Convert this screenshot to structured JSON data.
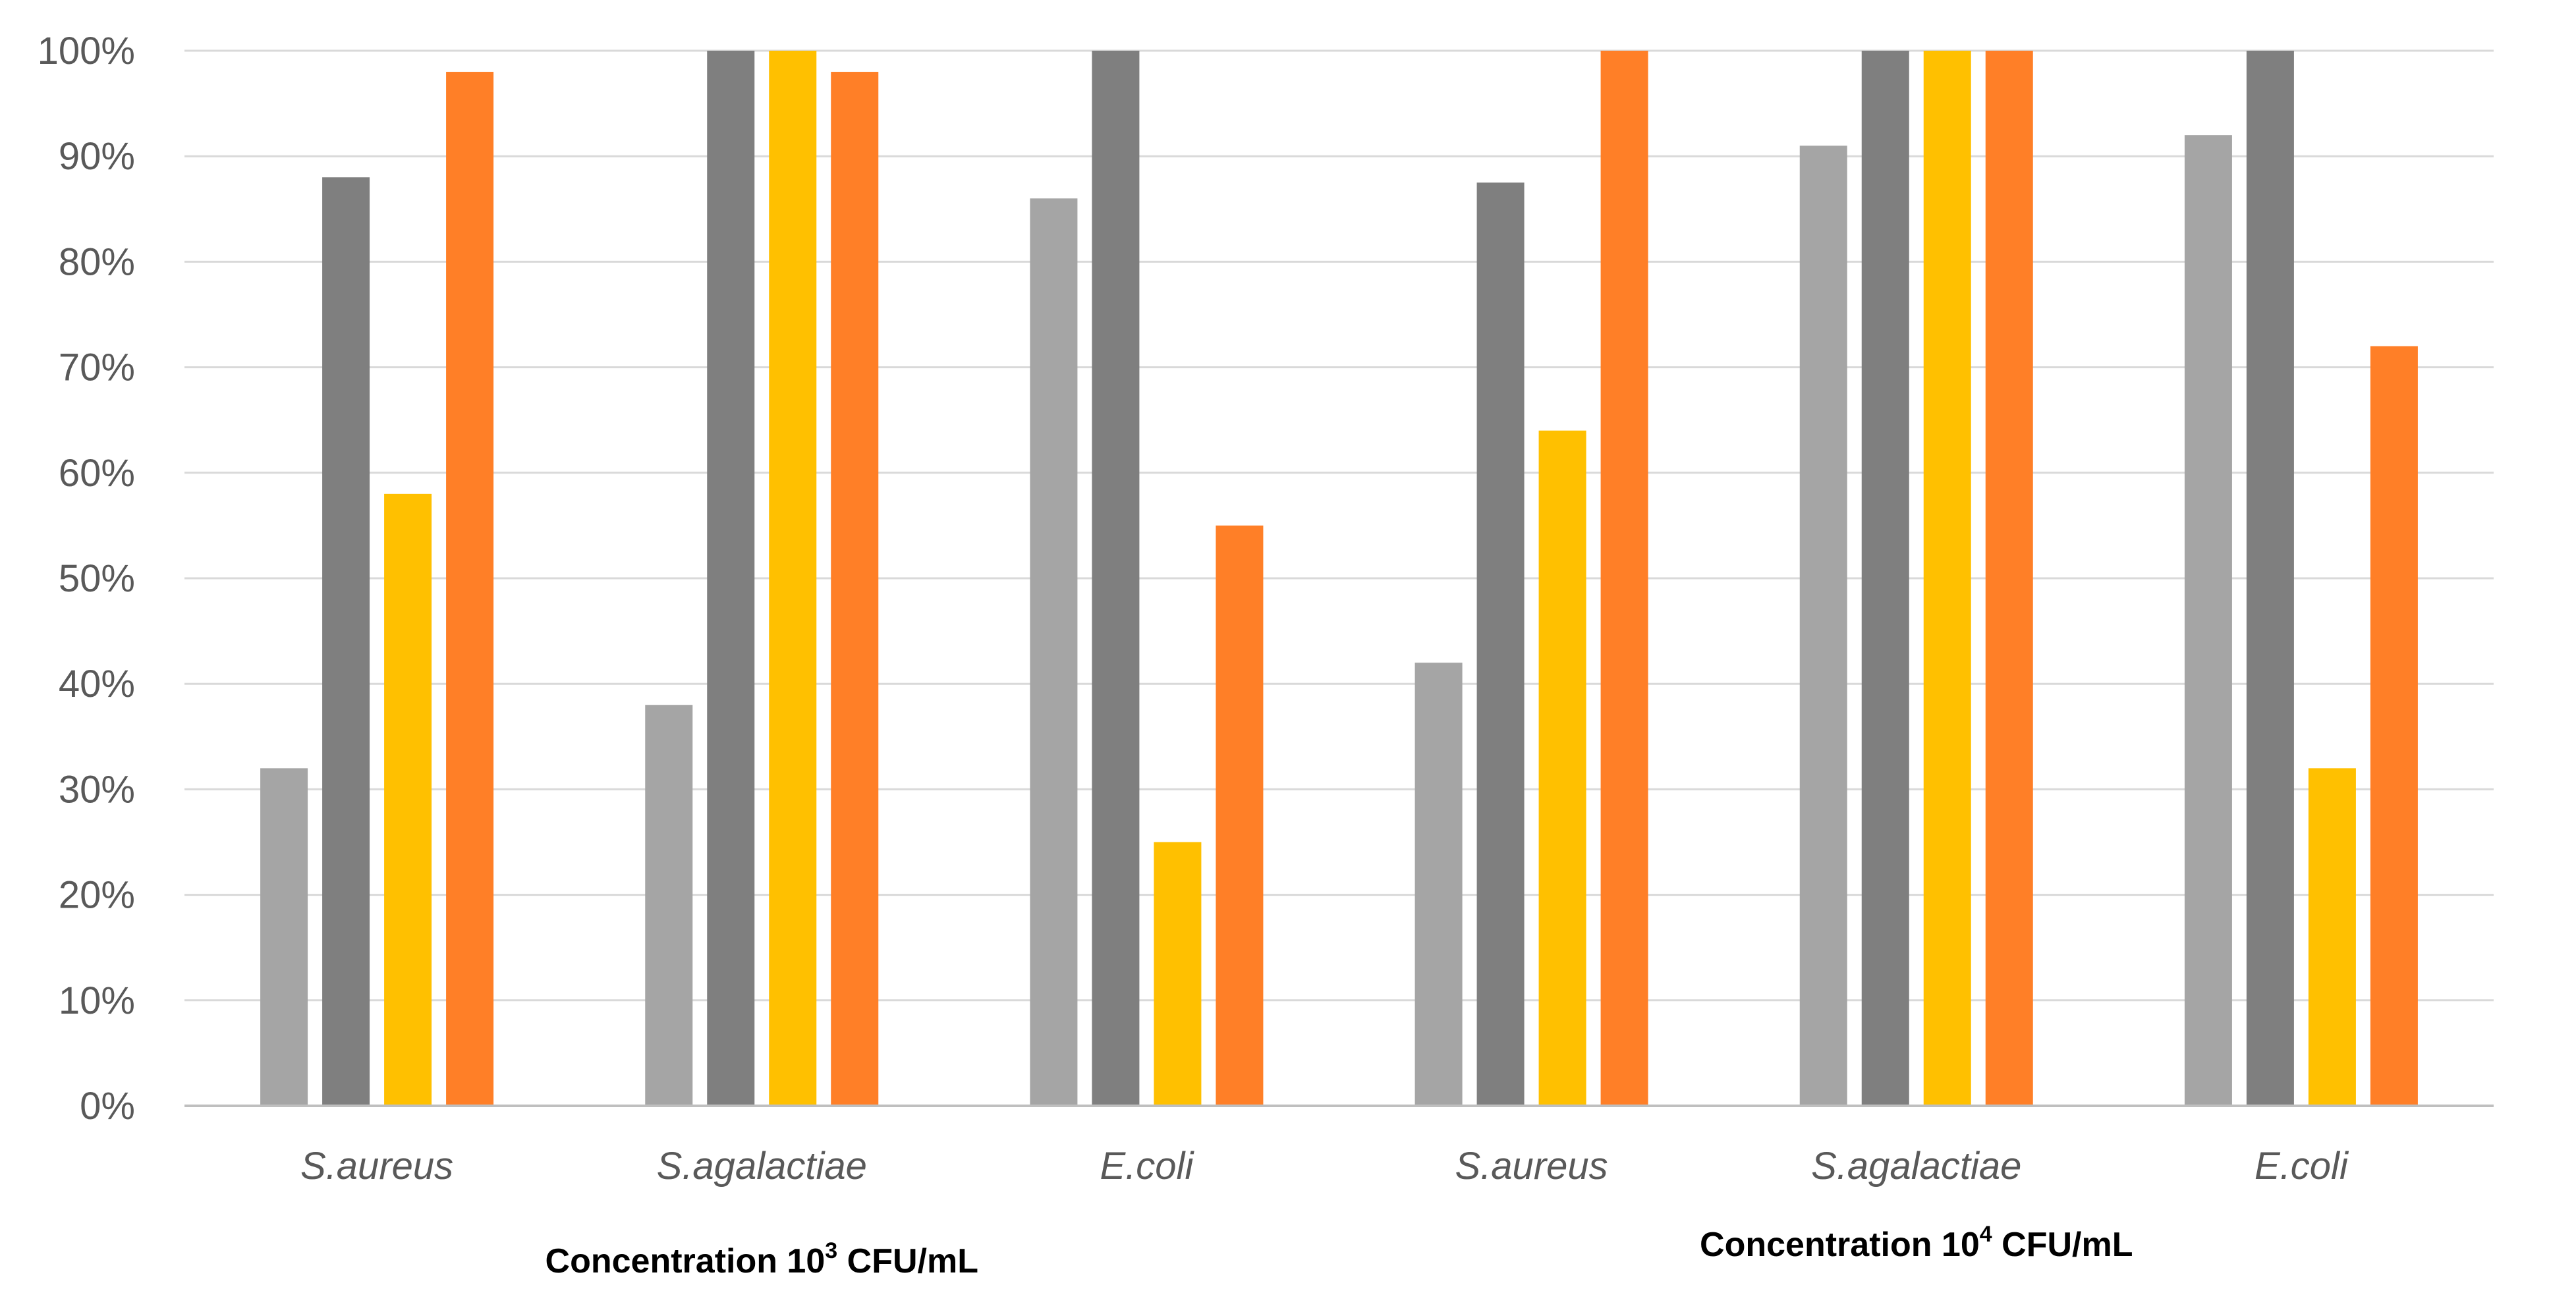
{
  "chart_data": {
    "type": "bar",
    "title": "",
    "xlabel": "",
    "ylabel": "",
    "ylim": [
      0,
      100
    ],
    "y_tick_values": [
      0,
      10,
      20,
      30,
      40,
      50,
      60,
      70,
      80,
      90,
      100
    ],
    "y_tick_labels": [
      "0%",
      "10%",
      "20%",
      "30%",
      "40%",
      "50%",
      "60%",
      "70%",
      "80%",
      "90%",
      "100%"
    ],
    "grid": true,
    "legend": "none",
    "groups": [
      {
        "label_prefix": "Concentration 10",
        "label_sup": "3",
        "label_suffix": " CFU/mL",
        "categories": [
          "S.aureus",
          "S.agalactiae",
          "E.coli"
        ],
        "series": [
          {
            "color": "#A5A5A5",
            "values": [
              32,
              38,
              86
            ]
          },
          {
            "color": "#7F7F7F",
            "values": [
              88,
              100,
              100
            ]
          },
          {
            "color": "#FFC000",
            "values": [
              58,
              100,
              25
            ]
          },
          {
            "color": "#FF7F27",
            "values": [
              98,
              98,
              55
            ]
          }
        ]
      },
      {
        "label_prefix": "Concentration 10",
        "label_sup": "4",
        "label_suffix": " CFU/mL",
        "categories": [
          "S.aureus",
          "S.agalactiae",
          "E.coli"
        ],
        "series": [
          {
            "color": "#A5A5A5",
            "values": [
              42,
              91,
              92
            ]
          },
          {
            "color": "#7F7F7F",
            "values": [
              87.5,
              100,
              100
            ]
          },
          {
            "color": "#FFC000",
            "values": [
              64,
              100,
              32
            ]
          },
          {
            "color": "#FF7F27",
            "values": [
              100,
              100,
              72
            ]
          }
        ]
      }
    ]
  }
}
